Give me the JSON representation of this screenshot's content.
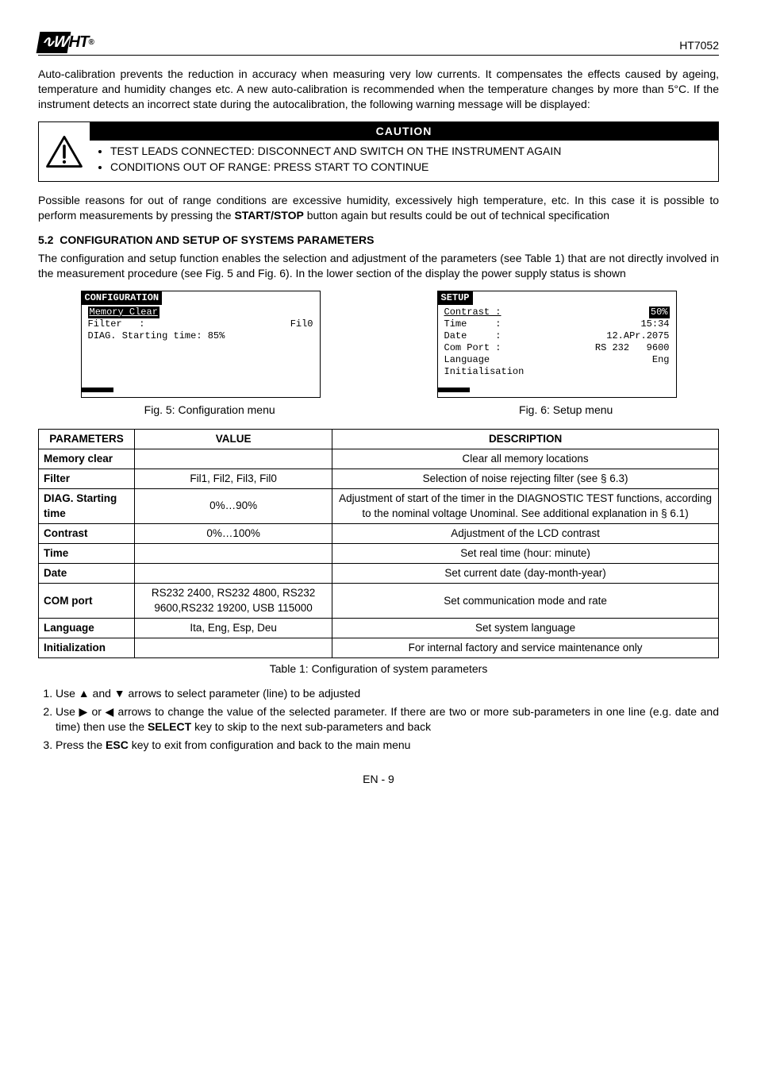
{
  "header": {
    "logo_text": "WHT",
    "model": "HT7052"
  },
  "intro_para": "Auto-calibration prevents the reduction in accuracy when measuring very low currents. It compensates the effects caused by ageing, temperature and humidity changes etc. A new auto-calibration is recommended when the temperature changes by more than 5°C. If the instrument detects an incorrect state during the autocalibration, the following warning message will be displayed:",
  "caution": {
    "title": "CAUTION",
    "items": [
      "TEST LEADS CONNECTED: DISCONNECT AND SWITCH ON THE INSTRUMENT AGAIN",
      "CONDITIONS OUT OF RANGE: PRESS START TO CONTINUE"
    ]
  },
  "post_caution": "Possible reasons for out of range conditions are excessive humidity, excessively high temperature, etc. In this case it is possible to perform measurements by pressing the START/STOP button again but results could be out of technical specification",
  "section": {
    "num": "5.2",
    "title": "CONFIGURATION AND SETUP OF SYSTEMS PARAMETERS",
    "body": "The configuration and setup function enables the selection and adjustment of the parameters (see Table 1) that are not directly involved in the measurement procedure (see Fig. 5 and Fig. 6). In the lower section of the display the power supply status is shown"
  },
  "lcd_left": {
    "title": "CONFIGURATION",
    "sel": "Memory Clear",
    "l2a": "Filter   :",
    "l2b": "Fil0",
    "l3": "DIAG. Starting time: 85%"
  },
  "lcd_right": {
    "title": "SETUP",
    "l1a": "Contrast :",
    "l1b": "50%",
    "l2a": "Time     :",
    "l2b": "15:34",
    "l3a": "Date     :",
    "l3b": "12.APr.2075",
    "l4a": "Com Port :",
    "l4b": "RS 232   9600",
    "l5a": "Language",
    "l5b": "Eng",
    "l6": "Initialisation"
  },
  "fig5": "Fig. 5: Configuration menu",
  "fig6": "Fig. 6: Setup menu",
  "table": {
    "headers": [
      "PARAMETERS",
      "VALUE",
      "DESCRIPTION"
    ],
    "rows": [
      {
        "p": "Memory clear",
        "v": "",
        "d": "Clear all memory locations"
      },
      {
        "p": "Filter",
        "v": "Fil1, Fil2, Fil3, Fil0",
        "d": "Selection of noise rejecting filter (see § 6.3)"
      },
      {
        "p": "DIAG. Starting time",
        "v": "0%…90%",
        "d": "Adjustment of start of the timer in the DIAGNOSTIC TEST functions, according to the nominal voltage Unominal. See additional explanation in § 6.1)"
      },
      {
        "p": "Contrast",
        "v": "0%…100%",
        "d": "Adjustment of the LCD contrast"
      },
      {
        "p": "Time",
        "v": "",
        "d": "Set real time (hour: minute)"
      },
      {
        "p": "Date",
        "v": "",
        "d": "Set current date (day-month-year)"
      },
      {
        "p": "COM port",
        "v": "RS232 2400, RS232 4800, RS232 9600,RS232 19200, USB 115000",
        "d": "Set communication mode and rate"
      },
      {
        "p": "Language",
        "v": "Ita, Eng, Esp, Deu",
        "d": "Set system language"
      },
      {
        "p": "Initialization",
        "v": "",
        "d": "For internal factory and service maintenance only"
      }
    ],
    "caption": "Table 1: Configuration of system parameters"
  },
  "steps": {
    "s1a": "Use ",
    "s1b": " and ",
    "s1c": " arrows to select parameter (line) to be adjusted",
    "s2a": "Use ",
    "s2b": " or ",
    "s2c": " arrows to change the value of the selected parameter. If there are two or more sub-parameters in one line (e.g. date and time) then use the ",
    "s2d": " key to skip to the next sub-parameters and back",
    "s3a": "Press the ",
    "s3b": " key to exit from configuration and back to the main menu",
    "select": "SELECT",
    "esc": "ESC",
    "up": "▲",
    "down": "▼",
    "right": "▶",
    "left": "◀"
  },
  "footer": "EN - 9",
  "colors": {
    "black": "#000000",
    "white": "#ffffff"
  }
}
